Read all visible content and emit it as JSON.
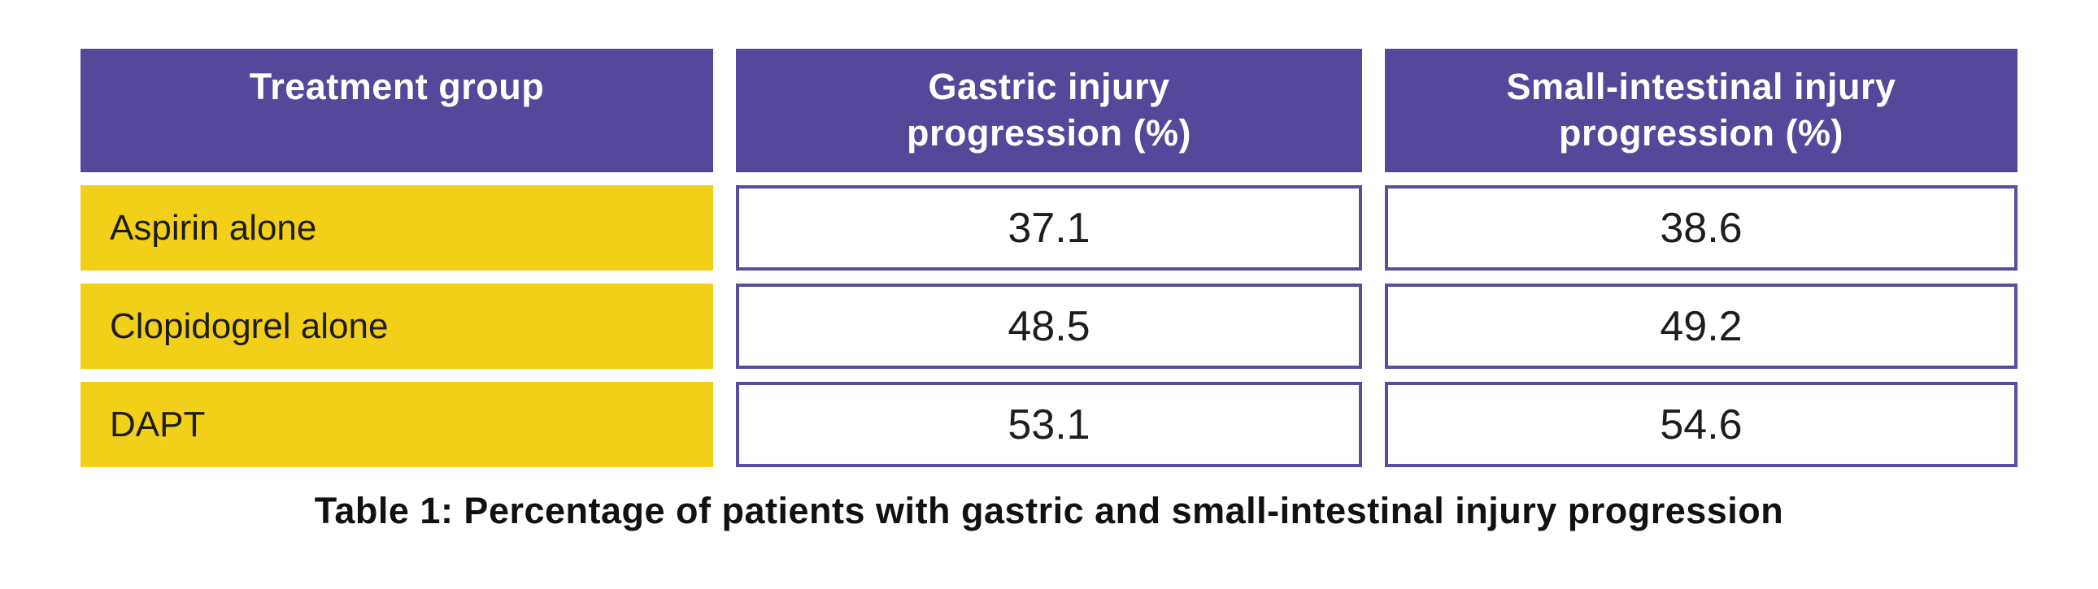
{
  "table": {
    "header": [
      "Treatment group",
      "Gastric injury\nprogression (%)",
      "Small-intestinal injury\nprogression (%)"
    ],
    "rows": [
      {
        "label": "Aspirin alone",
        "values": [
          "37.1",
          "38.6"
        ]
      },
      {
        "label": "Clopidogrel alone",
        "values": [
          "48.5",
          "49.2"
        ]
      },
      {
        "label": "DAPT",
        "values": [
          "53.1",
          "54.6"
        ]
      }
    ],
    "caption": "Table 1: Percentage of patients with gastric and small-intestinal injury progression"
  },
  "colors": {
    "header_bg": "#55489A",
    "header_text": "#FFFFFF",
    "row_label_bg": "#F2D01A",
    "cell_border": "#5A4D9D",
    "body_text": "#1D1D1B"
  },
  "chart_data": {
    "type": "table",
    "title": "Table 1: Percentage of patients with gastric and small-intestinal injury progression",
    "categories": [
      "Aspirin alone",
      "Clopidogrel alone",
      "DAPT"
    ],
    "series": [
      {
        "name": "Gastric injury progression (%)",
        "values": [
          37.1,
          48.5,
          53.1
        ]
      },
      {
        "name": "Small-intestinal injury progression (%)",
        "values": [
          38.6,
          49.2,
          54.6
        ]
      }
    ],
    "column_headers": [
      "Treatment group",
      "Gastric injury progression (%)",
      "Small-intestinal injury progression (%)"
    ]
  }
}
